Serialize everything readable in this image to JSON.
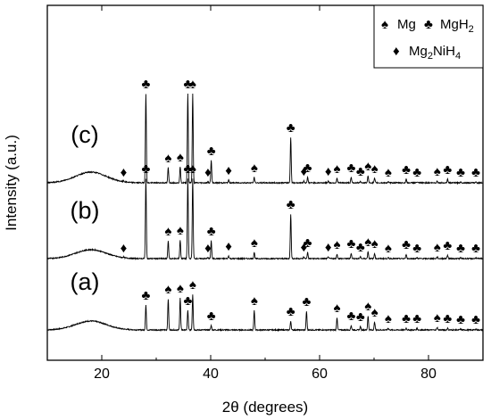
{
  "chart_data": {
    "type": "line",
    "xlabel": "2θ (degrees)",
    "ylabel": "Intensity (a.u.)",
    "xlim": [
      10,
      90
    ],
    "x_ticks": [
      20,
      40,
      60,
      80
    ],
    "y_ticks_shown": false,
    "grid": false,
    "legend_position": "top-right",
    "legend": [
      {
        "symbol": "♠",
        "label": "Mg"
      },
      {
        "symbol": "♣",
        "label": "MgH",
        "sub": "2"
      },
      {
        "symbol": "♦",
        "label": "Mg",
        "sub": "2",
        "label2": "NiH",
        "sub2": "4"
      }
    ],
    "series": [
      {
        "name": "(a)",
        "offset": 0.2,
        "hump": {
          "center": 18,
          "width": 4,
          "height": 0.1
        },
        "peaks": [
          {
            "x": 28.1,
            "h": 0.28,
            "phase": "MgH2"
          },
          {
            "x": 32.2,
            "h": 0.35,
            "phase": "Mg"
          },
          {
            "x": 34.4,
            "h": 0.36,
            "phase": "Mg"
          },
          {
            "x": 35.8,
            "h": 0.22,
            "phase": "MgH2"
          },
          {
            "x": 36.7,
            "h": 0.4,
            "phase": "Mg"
          },
          {
            "x": 40.1,
            "h": 0.05,
            "phase": "MgH2"
          },
          {
            "x": 48.0,
            "h": 0.22,
            "phase": "Mg"
          },
          {
            "x": 54.7,
            "h": 0.1,
            "phase": "MgH2"
          },
          {
            "x": 57.6,
            "h": 0.21,
            "phase": "MgH2"
          },
          {
            "x": 63.2,
            "h": 0.14,
            "phase": "Mg"
          },
          {
            "x": 65.8,
            "h": 0.05,
            "phase": "MgH2"
          },
          {
            "x": 67.5,
            "h": 0.04,
            "phase": "MgH2"
          },
          {
            "x": 68.9,
            "h": 0.16,
            "phase": "Mg"
          },
          {
            "x": 70.1,
            "h": 0.09,
            "phase": "Mg"
          },
          {
            "x": 72.6,
            "h": 0.02,
            "phase": "Mg"
          },
          {
            "x": 75.9,
            "h": 0.02,
            "phase": "MgH2"
          },
          {
            "x": 77.9,
            "h": 0.02,
            "phase": "MgH2"
          },
          {
            "x": 81.6,
            "h": 0.03,
            "phase": "Mg"
          },
          {
            "x": 83.5,
            "h": 0.02,
            "phase": "MgH2"
          },
          {
            "x": 85.9,
            "h": 0.01,
            "phase": "MgH2"
          },
          {
            "x": 88.7,
            "h": 0.01,
            "phase": "MgH2"
          }
        ]
      },
      {
        "name": "(b)",
        "offset": 1.0,
        "hump": {
          "center": 18,
          "width": 4,
          "height": 0.1
        },
        "peaks": [
          {
            "x": 24.0,
            "h": 0.01,
            "phase": "Mg2NiH4"
          },
          {
            "x": 28.1,
            "h": 0.9,
            "phase": "MgH2"
          },
          {
            "x": 32.2,
            "h": 0.2,
            "phase": "Mg"
          },
          {
            "x": 34.4,
            "h": 0.21,
            "phase": "Mg"
          },
          {
            "x": 35.8,
            "h": 0.9,
            "phase": "MgH2"
          },
          {
            "x": 36.7,
            "h": 0.9,
            "phase": "Mg"
          },
          {
            "x": 39.5,
            "h": 0.01,
            "phase": "Mg2NiH4"
          },
          {
            "x": 40.1,
            "h": 0.2,
            "phase": "MgH2"
          },
          {
            "x": 43.3,
            "h": 0.03,
            "phase": "Mg2NiH4"
          },
          {
            "x": 48.0,
            "h": 0.07,
            "phase": "Mg"
          },
          {
            "x": 54.7,
            "h": 0.5,
            "phase": "MgH2"
          },
          {
            "x": 57.1,
            "h": 0.02,
            "phase": "Mg2NiH4"
          },
          {
            "x": 57.8,
            "h": 0.07,
            "phase": "MgH2"
          },
          {
            "x": 61.6,
            "h": 0.02,
            "phase": "Mg2NiH4"
          },
          {
            "x": 63.2,
            "h": 0.05,
            "phase": "Mg"
          },
          {
            "x": 65.8,
            "h": 0.06,
            "phase": "MgH2"
          },
          {
            "x": 67.5,
            "h": 0.02,
            "phase": "MgH2"
          },
          {
            "x": 68.9,
            "h": 0.08,
            "phase": "Mg"
          },
          {
            "x": 70.1,
            "h": 0.06,
            "phase": "Mg"
          },
          {
            "x": 72.6,
            "h": 0.01,
            "phase": "Mg"
          },
          {
            "x": 75.9,
            "h": 0.05,
            "phase": "MgH2"
          },
          {
            "x": 77.9,
            "h": 0.01,
            "phase": "MgH2"
          },
          {
            "x": 81.6,
            "h": 0.02,
            "phase": "Mg"
          },
          {
            "x": 83.5,
            "h": 0.04,
            "phase": "MgH2"
          },
          {
            "x": 85.9,
            "h": 0.01,
            "phase": "MgH2"
          },
          {
            "x": 88.7,
            "h": 0.01,
            "phase": "MgH2"
          }
        ]
      },
      {
        "name": "(c)",
        "offset": 1.85,
        "hump": {
          "center": 18,
          "width": 4,
          "height": 0.12
        },
        "peaks": [
          {
            "x": 24.0,
            "h": 0.01,
            "phase": "Mg2NiH4"
          },
          {
            "x": 28.1,
            "h": 1.0,
            "phase": "MgH2"
          },
          {
            "x": 32.2,
            "h": 0.17,
            "phase": "Mg"
          },
          {
            "x": 34.4,
            "h": 0.18,
            "phase": "Mg"
          },
          {
            "x": 35.8,
            "h": 1.0,
            "phase": "MgH2"
          },
          {
            "x": 36.7,
            "h": 1.0,
            "phase": "Mg"
          },
          {
            "x": 39.5,
            "h": 0.01,
            "phase": "Mg2NiH4"
          },
          {
            "x": 40.1,
            "h": 0.25,
            "phase": "MgH2"
          },
          {
            "x": 43.3,
            "h": 0.03,
            "phase": "Mg2NiH4"
          },
          {
            "x": 48.0,
            "h": 0.06,
            "phase": "Mg"
          },
          {
            "x": 54.7,
            "h": 0.51,
            "phase": "MgH2"
          },
          {
            "x": 57.1,
            "h": 0.02,
            "phase": "Mg2NiH4"
          },
          {
            "x": 57.8,
            "h": 0.06,
            "phase": "MgH2"
          },
          {
            "x": 61.6,
            "h": 0.02,
            "phase": "Mg2NiH4"
          },
          {
            "x": 63.2,
            "h": 0.05,
            "phase": "Mg"
          },
          {
            "x": 65.8,
            "h": 0.06,
            "phase": "MgH2"
          },
          {
            "x": 67.5,
            "h": 0.02,
            "phase": "MgH2"
          },
          {
            "x": 68.9,
            "h": 0.08,
            "phase": "Mg"
          },
          {
            "x": 70.1,
            "h": 0.05,
            "phase": "Mg"
          },
          {
            "x": 72.6,
            "h": 0.01,
            "phase": "Mg"
          },
          {
            "x": 75.9,
            "h": 0.04,
            "phase": "MgH2"
          },
          {
            "x": 77.9,
            "h": 0.01,
            "phase": "MgH2"
          },
          {
            "x": 81.6,
            "h": 0.02,
            "phase": "Mg"
          },
          {
            "x": 83.5,
            "h": 0.04,
            "phase": "MgH2"
          },
          {
            "x": 85.9,
            "h": 0.01,
            "phase": "MgH2"
          },
          {
            "x": 88.7,
            "h": 0.01,
            "phase": "MgH2"
          }
        ]
      }
    ]
  }
}
